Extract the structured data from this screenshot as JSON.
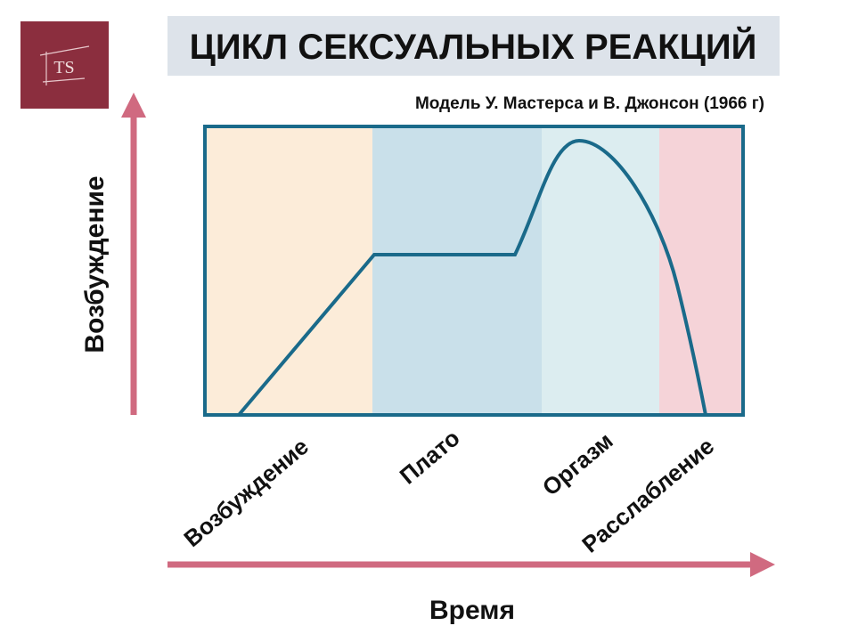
{
  "logo": {
    "text": "TS"
  },
  "header": {
    "title": "ЦИКЛ СЕКСУАЛЬНЫХ РЕАКЦИЙ",
    "subtitle": "Модель У. Мастерса и В. Джонсон (1966 г)"
  },
  "axes": {
    "y_label": "Возбуждение",
    "x_label": "Время"
  },
  "phases": [
    "Возбуждение",
    "Плато",
    "Оргазм",
    "Расслабление"
  ]
}
